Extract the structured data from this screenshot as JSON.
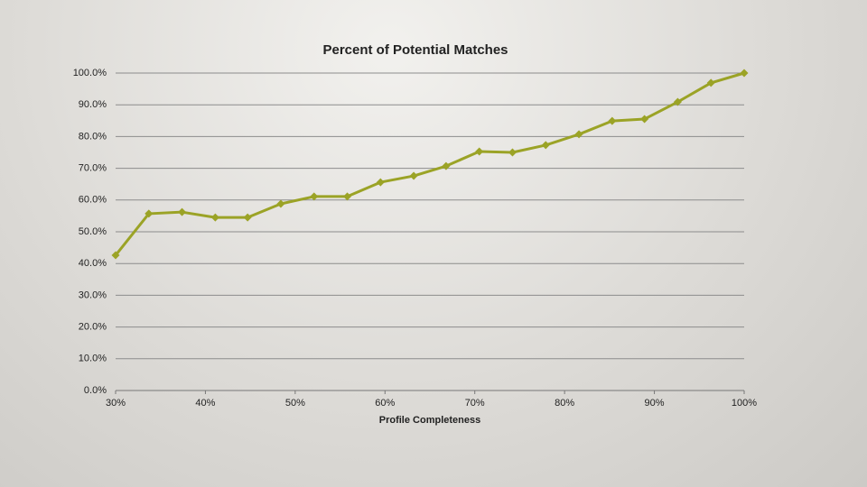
{
  "chart_data": {
    "type": "line",
    "title": "Percent of Potential Matches",
    "x_label": "Profile Completeness",
    "x": [
      30,
      33.7,
      37.4,
      41.1,
      44.7,
      48.4,
      52.1,
      55.8,
      59.5,
      63.2,
      66.8,
      70.5,
      74.2,
      77.9,
      81.6,
      85.3,
      88.9,
      92.6,
      96.3,
      100
    ],
    "values": [
      42.6,
      55.7,
      56.2,
      54.5,
      54.5,
      58.8,
      61.1,
      61.1,
      65.6,
      67.6,
      70.7,
      75.3,
      75.0,
      77.3,
      80.7,
      84.9,
      85.5,
      90.9,
      96.9,
      100
    ],
    "color": "#9ba326",
    "xlim": [
      30,
      100
    ],
    "xticks": [
      {
        "value": 30,
        "label": "30%"
      },
      {
        "value": 40,
        "label": "40%"
      },
      {
        "value": 50,
        "label": "50%"
      },
      {
        "value": 60,
        "label": "60%"
      },
      {
        "value": 70,
        "label": "70%"
      },
      {
        "value": 80,
        "label": "80%"
      },
      {
        "value": 90,
        "label": "90%"
      },
      {
        "value": 100,
        "label": "100%"
      }
    ],
    "ylim": [
      0,
      100
    ],
    "yticks": [
      {
        "value": 0,
        "label": "0.0%"
      },
      {
        "value": 10,
        "label": "10.0%"
      },
      {
        "value": 20,
        "label": "20.0%"
      },
      {
        "value": 30,
        "label": "30.0%"
      },
      {
        "value": 40,
        "label": "40.0%"
      },
      {
        "value": 50,
        "label": "50.0%"
      },
      {
        "value": 60,
        "label": "60.0%"
      },
      {
        "value": 70,
        "label": "70.0%"
      },
      {
        "value": 80,
        "label": "80.0%"
      },
      {
        "value": 90,
        "label": "90.0%"
      },
      {
        "value": 100,
        "label": "100.0%"
      }
    ],
    "grid": true
  }
}
